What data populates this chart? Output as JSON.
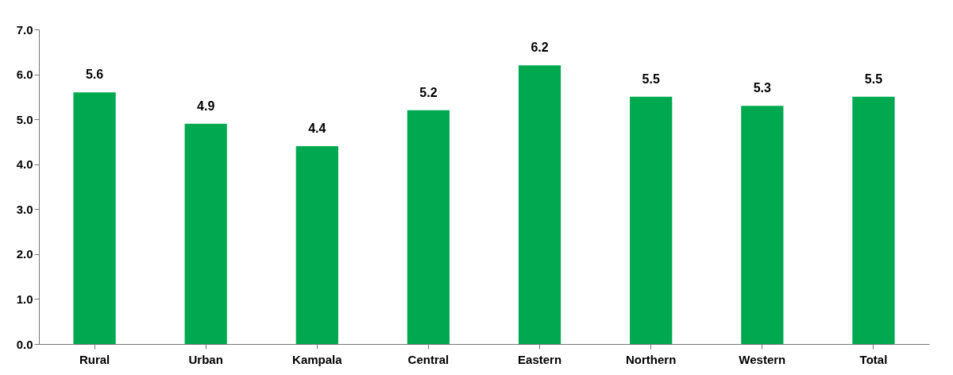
{
  "chart_data": {
    "type": "bar",
    "categories": [
      "Rural",
      "Urban",
      "Kampala",
      "Central",
      "Eastern",
      "Northern",
      "Western",
      "Total"
    ],
    "values": [
      5.6,
      4.9,
      4.4,
      5.2,
      6.2,
      5.5,
      5.3,
      5.5
    ],
    "color": "#00a94f",
    "ylim": [
      0,
      7
    ],
    "yticks": [
      {
        "value": 0,
        "label": "0.0"
      },
      {
        "value": 1,
        "label": "1.0"
      },
      {
        "value": 2,
        "label": "2.0"
      },
      {
        "value": 3,
        "label": "3.0"
      },
      {
        "value": 4,
        "label": "4.0"
      },
      {
        "value": 5,
        "label": "5.0"
      },
      {
        "value": 6,
        "label": "6.0"
      },
      {
        "value": 7,
        "label": "7.0"
      }
    ],
    "data_labels": true,
    "grid": false
  }
}
